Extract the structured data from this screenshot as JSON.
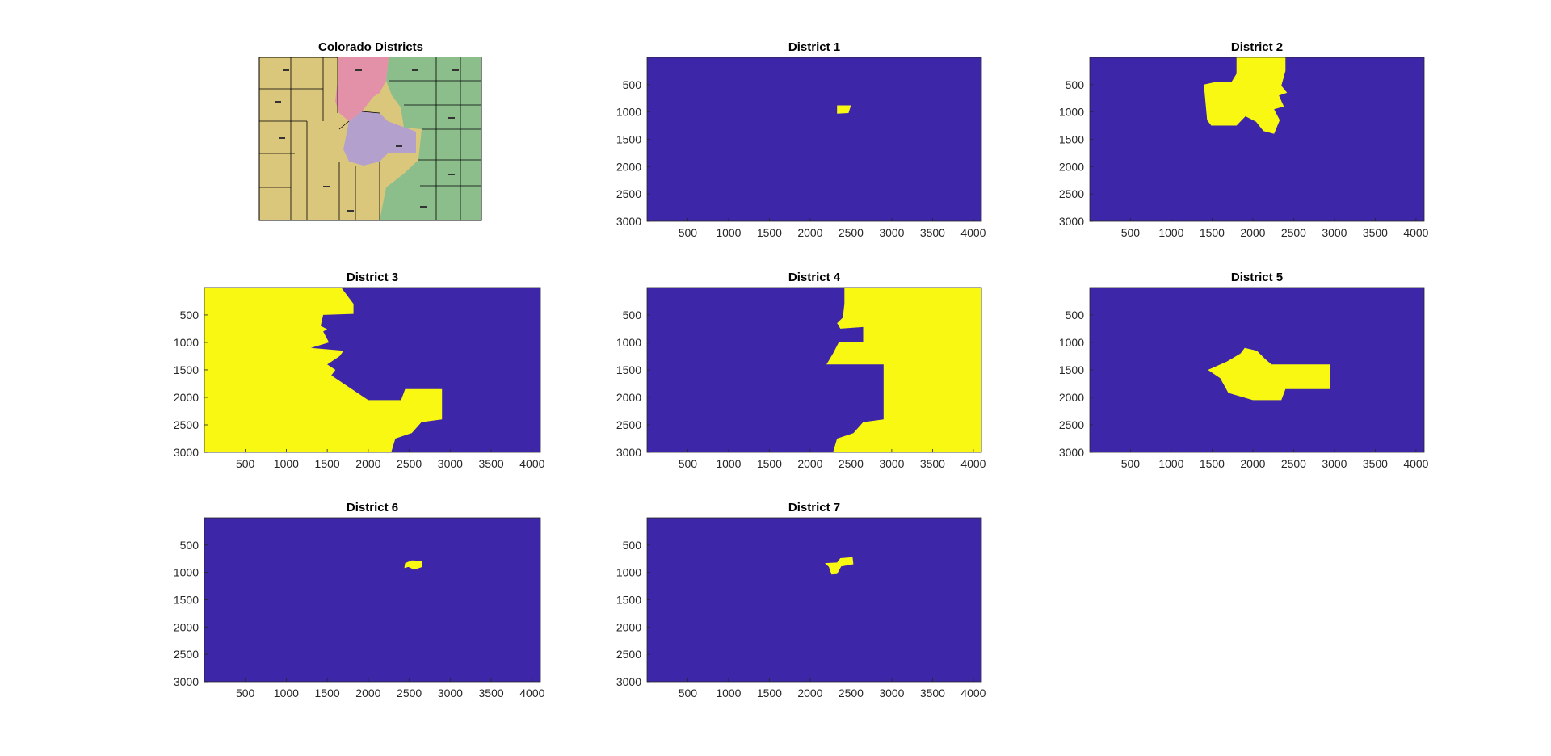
{
  "figure": {
    "colors": {
      "background": "#ffffff",
      "inside": "#f8f812",
      "outside": "#3d26a8",
      "axis": "#262626",
      "map_tan": "#dbc77c",
      "map_pink": "#e391a8",
      "map_green": "#8cbe8c",
      "map_purple": "#b4a0cc"
    }
  },
  "chart_data": [
    {
      "type": "image",
      "title": "Colorado Districts",
      "content": "map of Colorado counties colored by congressional district",
      "axes_visible": false
    },
    {
      "type": "heatmap",
      "title": "District 1",
      "xticks": [
        500,
        1000,
        1500,
        2000,
        2500,
        3000,
        3500,
        4000
      ],
      "yticks": [
        500,
        1000,
        1500,
        2000,
        2500,
        3000
      ],
      "xlim": [
        1,
        4100
      ],
      "ylim": [
        1,
        3000
      ],
      "y_direction": "reverse",
      "values": "binary mask (1 = inside district, 0 = outside)",
      "region_polygon": [
        [
          2330,
          880
        ],
        [
          2500,
          880
        ],
        [
          2470,
          1020
        ],
        [
          2330,
          1030
        ]
      ]
    },
    {
      "type": "heatmap",
      "title": "District 2",
      "xticks": [
        500,
        1000,
        1500,
        2000,
        2500,
        3000,
        3500,
        4000
      ],
      "yticks": [
        500,
        1000,
        1500,
        2000,
        2500,
        3000
      ],
      "xlim": [
        1,
        4100
      ],
      "ylim": [
        1,
        3000
      ],
      "y_direction": "reverse",
      "values": "binary mask (1 = inside district, 0 = outside)",
      "region_polygon": [
        [
          1800,
          1
        ],
        [
          2400,
          1
        ],
        [
          2400,
          250
        ],
        [
          2350,
          520
        ],
        [
          2420,
          650
        ],
        [
          2320,
          700
        ],
        [
          2380,
          900
        ],
        [
          2260,
          950
        ],
        [
          2330,
          1150
        ],
        [
          2260,
          1400
        ],
        [
          2130,
          1350
        ],
        [
          2040,
          1180
        ],
        [
          1910,
          1080
        ],
        [
          1800,
          1250
        ],
        [
          1490,
          1250
        ],
        [
          1440,
          1150
        ],
        [
          1400,
          500
        ],
        [
          1550,
          450
        ],
        [
          1740,
          450
        ],
        [
          1800,
          300
        ]
      ]
    },
    {
      "type": "heatmap",
      "title": "District 3",
      "xticks": [
        500,
        1000,
        1500,
        2000,
        2500,
        3000,
        3500,
        4000
      ],
      "yticks": [
        500,
        1000,
        1500,
        2000,
        2500,
        3000
      ],
      "xlim": [
        1,
        4100
      ],
      "ylim": [
        1,
        3000
      ],
      "y_direction": "reverse",
      "values": "binary mask (1 = inside district, 0 = outside)",
      "region_polygon": [
        [
          1,
          1
        ],
        [
          1670,
          1
        ],
        [
          1820,
          300
        ],
        [
          1820,
          480
        ],
        [
          1450,
          500
        ],
        [
          1420,
          700
        ],
        [
          1500,
          760
        ],
        [
          1450,
          800
        ],
        [
          1520,
          1000
        ],
        [
          1300,
          1100
        ],
        [
          1700,
          1150
        ],
        [
          1650,
          1250
        ],
        [
          1500,
          1400
        ],
        [
          1600,
          1500
        ],
        [
          1550,
          1600
        ],
        [
          1700,
          1750
        ],
        [
          2000,
          2050
        ],
        [
          2400,
          2050
        ],
        [
          2450,
          1850
        ],
        [
          2900,
          1850
        ],
        [
          2900,
          2400
        ],
        [
          2650,
          2450
        ],
        [
          2530,
          2650
        ],
        [
          2330,
          2750
        ],
        [
          2280,
          3000
        ],
        [
          1,
          3000
        ]
      ]
    },
    {
      "type": "heatmap",
      "title": "District 4",
      "xticks": [
        500,
        1000,
        1500,
        2000,
        2500,
        3000,
        3500,
        4000
      ],
      "yticks": [
        500,
        1000,
        1500,
        2000,
        2500,
        3000
      ],
      "xlim": [
        1,
        4100
      ],
      "ylim": [
        1,
        3000
      ],
      "y_direction": "reverse",
      "values": "binary mask (1 = inside district, 0 = outside)",
      "region_polygon": [
        [
          2420,
          1
        ],
        [
          4100,
          1
        ],
        [
          4100,
          3000
        ],
        [
          2280,
          3000
        ],
        [
          2330,
          2750
        ],
        [
          2530,
          2650
        ],
        [
          2650,
          2450
        ],
        [
          2900,
          2400
        ],
        [
          2900,
          1400
        ],
        [
          2200,
          1400
        ],
        [
          2280,
          1200
        ],
        [
          2350,
          1000
        ],
        [
          2650,
          1000
        ],
        [
          2650,
          720
        ],
        [
          2370,
          750
        ],
        [
          2330,
          650
        ],
        [
          2400,
          550
        ],
        [
          2420,
          300
        ]
      ]
    },
    {
      "type": "heatmap",
      "title": "District 5",
      "xticks": [
        500,
        1000,
        1500,
        2000,
        2500,
        3000,
        3500,
        4000
      ],
      "yticks": [
        500,
        1000,
        1500,
        2000,
        2500,
        3000
      ],
      "xlim": [
        1,
        4100
      ],
      "ylim": [
        1,
        3000
      ],
      "y_direction": "reverse",
      "values": "binary mask (1 = inside district, 0 = outside)",
      "region_polygon": [
        [
          1680,
          1350
        ],
        [
          1850,
          1200
        ],
        [
          1900,
          1100
        ],
        [
          2050,
          1150
        ],
        [
          2150,
          1300
        ],
        [
          2230,
          1400
        ],
        [
          2950,
          1400
        ],
        [
          2950,
          1850
        ],
        [
          2400,
          1850
        ],
        [
          2350,
          2050
        ],
        [
          2000,
          2050
        ],
        [
          1700,
          1920
        ],
        [
          1600,
          1650
        ],
        [
          1450,
          1500
        ]
      ]
    },
    {
      "type": "heatmap",
      "title": "District 6",
      "xticks": [
        500,
        1000,
        1500,
        2000,
        2500,
        3000,
        3500,
        4000
      ],
      "yticks": [
        500,
        1000,
        1500,
        2000,
        2500,
        3000
      ],
      "xlim": [
        1,
        4100
      ],
      "ylim": [
        1,
        3000
      ],
      "y_direction": "reverse",
      "values": "binary mask (1 = inside district, 0 = outside)",
      "region_polygon": [
        [
          2450,
          830
        ],
        [
          2530,
          780
        ],
        [
          2660,
          790
        ],
        [
          2660,
          900
        ],
        [
          2560,
          950
        ],
        [
          2490,
          900
        ],
        [
          2440,
          920
        ]
      ]
    },
    {
      "type": "heatmap",
      "title": "District 7",
      "xticks": [
        500,
        1000,
        1500,
        2000,
        2500,
        3000,
        3500,
        4000
      ],
      "yticks": [
        500,
        1000,
        1500,
        2000,
        2500,
        3000
      ],
      "xlim": [
        1,
        4100
      ],
      "ylim": [
        1,
        3000
      ],
      "y_direction": "reverse",
      "values": "binary mask (1 = inside district, 0 = outside)",
      "region_polygon": [
        [
          2180,
          830
        ],
        [
          2330,
          820
        ],
        [
          2370,
          740
        ],
        [
          2520,
          720
        ],
        [
          2530,
          850
        ],
        [
          2380,
          890
        ],
        [
          2330,
          1030
        ],
        [
          2260,
          1040
        ],
        [
          2230,
          900
        ]
      ]
    }
  ]
}
